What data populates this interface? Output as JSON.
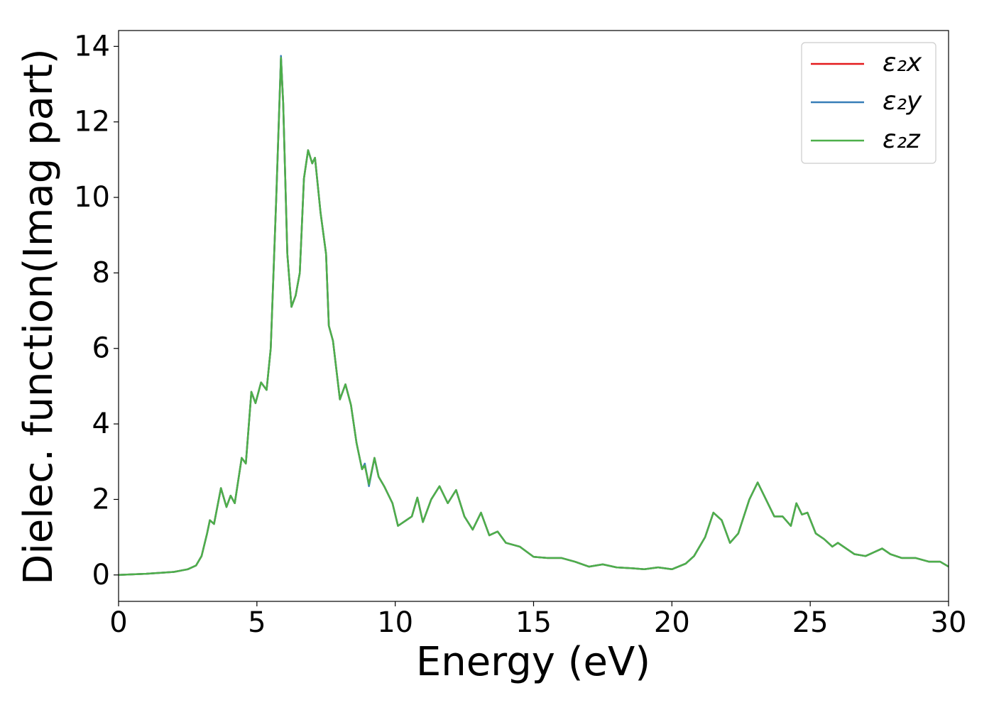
{
  "chart_data": {
    "type": "line",
    "xlabel": "Energy (eV)",
    "ylabel": "Dielec. function(Imag part)",
    "x": [
      0,
      1,
      2,
      2.5,
      2.8,
      3.0,
      3.2,
      3.3,
      3.45,
      3.7,
      3.9,
      4.05,
      4.2,
      4.45,
      4.6,
      4.8,
      4.95,
      5.15,
      5.35,
      5.5,
      5.7,
      5.87,
      5.95,
      6.1,
      6.25,
      6.4,
      6.55,
      6.7,
      6.85,
      7.0,
      7.1,
      7.3,
      7.5,
      7.6,
      7.75,
      8.0,
      8.2,
      8.4,
      8.6,
      8.8,
      8.9,
      9.05,
      9.25,
      9.4,
      9.6,
      9.9,
      10.1,
      10.4,
      10.6,
      10.8,
      11.0,
      11.3,
      11.6,
      11.9,
      12.2,
      12.5,
      12.8,
      13.1,
      13.4,
      13.7,
      14.0,
      14.5,
      15,
      15.5,
      16,
      16.5,
      17,
      17.5,
      18,
      18.5,
      19,
      19.5,
      20,
      20.5,
      20.8,
      21.2,
      21.5,
      21.8,
      22.1,
      22.4,
      22.8,
      23.1,
      23.4,
      23.7,
      24.0,
      24.3,
      24.5,
      24.7,
      24.9,
      25.2,
      25.5,
      25.8,
      26.0,
      26.3,
      26.6,
      27.0,
      27.3,
      27.6,
      27.9,
      28.3,
      28.8,
      29.3,
      29.7,
      30
    ],
    "series": [
      {
        "name": "ε₂x",
        "color": "#e41a1c",
        "values": [
          0.0,
          0.03,
          0.08,
          0.15,
          0.25,
          0.5,
          1.1,
          1.45,
          1.35,
          2.3,
          1.8,
          2.1,
          1.9,
          3.1,
          2.95,
          4.85,
          4.55,
          5.1,
          4.9,
          6.0,
          10.0,
          13.7,
          12.5,
          8.5,
          7.1,
          7.4,
          8.0,
          10.5,
          11.25,
          10.9,
          11.05,
          9.6,
          8.5,
          6.6,
          6.2,
          4.65,
          5.05,
          4.5,
          3.5,
          2.8,
          2.9,
          2.4,
          3.1,
          2.6,
          2.35,
          1.9,
          1.3,
          1.45,
          1.55,
          2.05,
          1.4,
          2.0,
          2.35,
          1.9,
          2.25,
          1.55,
          1.2,
          1.65,
          1.05,
          1.15,
          0.85,
          0.75,
          0.48,
          0.45,
          0.45,
          0.35,
          0.22,
          0.28,
          0.2,
          0.18,
          0.15,
          0.2,
          0.15,
          0.3,
          0.5,
          1.0,
          1.65,
          1.45,
          0.85,
          1.1,
          2.0,
          2.45,
          2.0,
          1.55,
          1.55,
          1.3,
          1.9,
          1.6,
          1.65,
          1.1,
          0.95,
          0.75,
          0.85,
          0.7,
          0.55,
          0.5,
          0.6,
          0.7,
          0.55,
          0.45,
          0.45,
          0.35,
          0.35,
          0.22
        ]
      },
      {
        "name": "ε₂y",
        "color": "#377eb8",
        "values": [
          0.0,
          0.03,
          0.08,
          0.15,
          0.25,
          0.5,
          1.1,
          1.45,
          1.35,
          2.3,
          1.8,
          2.1,
          1.9,
          3.1,
          2.95,
          4.85,
          4.55,
          5.1,
          4.9,
          6.0,
          10.0,
          13.75,
          12.5,
          8.5,
          7.1,
          7.4,
          8.0,
          10.5,
          11.25,
          10.9,
          11.05,
          9.6,
          8.5,
          6.6,
          6.2,
          4.65,
          5.05,
          4.5,
          3.5,
          2.8,
          2.95,
          2.35,
          3.1,
          2.6,
          2.35,
          1.9,
          1.3,
          1.45,
          1.55,
          2.05,
          1.4,
          2.0,
          2.35,
          1.9,
          2.25,
          1.55,
          1.2,
          1.65,
          1.05,
          1.15,
          0.85,
          0.75,
          0.48,
          0.45,
          0.45,
          0.35,
          0.22,
          0.28,
          0.2,
          0.18,
          0.15,
          0.2,
          0.15,
          0.3,
          0.5,
          1.0,
          1.65,
          1.45,
          0.85,
          1.1,
          2.0,
          2.45,
          2.0,
          1.55,
          1.55,
          1.3,
          1.9,
          1.6,
          1.65,
          1.1,
          0.95,
          0.75,
          0.85,
          0.7,
          0.55,
          0.5,
          0.6,
          0.7,
          0.55,
          0.45,
          0.45,
          0.35,
          0.35,
          0.22
        ]
      },
      {
        "name": "ε₂z",
        "color": "#4daf4a",
        "values": [
          0.0,
          0.03,
          0.08,
          0.15,
          0.25,
          0.5,
          1.1,
          1.45,
          1.35,
          2.3,
          1.8,
          2.1,
          1.9,
          3.1,
          2.95,
          4.85,
          4.55,
          5.1,
          4.9,
          6.0,
          10.0,
          13.7,
          12.5,
          8.5,
          7.1,
          7.4,
          8.0,
          10.5,
          11.25,
          10.9,
          11.05,
          9.6,
          8.5,
          6.6,
          6.2,
          4.65,
          5.05,
          4.5,
          3.5,
          2.8,
          2.9,
          2.4,
          3.1,
          2.6,
          2.35,
          1.9,
          1.3,
          1.45,
          1.55,
          2.05,
          1.4,
          2.0,
          2.35,
          1.9,
          2.25,
          1.55,
          1.2,
          1.65,
          1.05,
          1.15,
          0.85,
          0.75,
          0.48,
          0.45,
          0.45,
          0.35,
          0.22,
          0.28,
          0.2,
          0.18,
          0.15,
          0.2,
          0.15,
          0.3,
          0.5,
          1.0,
          1.65,
          1.45,
          0.85,
          1.1,
          2.0,
          2.45,
          2.0,
          1.55,
          1.55,
          1.3,
          1.9,
          1.6,
          1.65,
          1.1,
          0.95,
          0.75,
          0.85,
          0.7,
          0.55,
          0.5,
          0.6,
          0.7,
          0.55,
          0.45,
          0.45,
          0.35,
          0.35,
          0.22
        ]
      }
    ],
    "xlim": [
      0,
      30
    ],
    "xticks": [
      0,
      5,
      10,
      15,
      20,
      25,
      30
    ],
    "ylim": [
      -0.7,
      14.42
    ],
    "yticks": [
      0,
      2,
      4,
      6,
      8,
      10,
      12,
      14
    ],
    "legend": "upper right",
    "grid": false
  }
}
